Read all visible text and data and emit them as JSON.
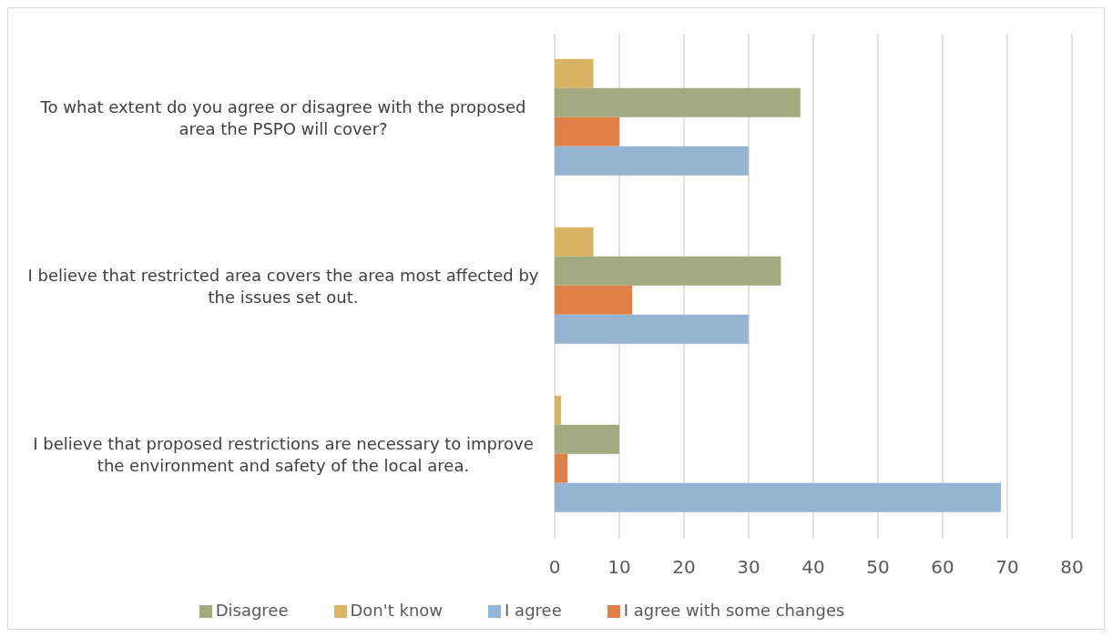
{
  "chart_data": {
    "type": "bar",
    "orientation": "horizontal",
    "categories": [
      "To what extent do you agree or disagree with the proposed area the PSPO will cover?",
      "I believe that restricted area covers the area most affected by the issues set out.",
      "I believe that proposed restrictions are necessary to improve the environment and safety of the local area."
    ],
    "series": [
      {
        "name": "Don't know",
        "color": "#d9b462",
        "values": [
          6,
          6,
          1
        ]
      },
      {
        "name": "Disagree",
        "color": "#a3aa7f",
        "values": [
          38,
          35,
          10
        ]
      },
      {
        "name": "I agree with some changes",
        "color": "#de8048",
        "values": [
          10,
          12,
          2
        ]
      },
      {
        "name": "I agree",
        "color": "#94b4d2",
        "values": [
          30,
          30,
          69
        ]
      }
    ],
    "xlim": [
      0,
      80
    ],
    "xticks": [
      0,
      10,
      20,
      30,
      40,
      50,
      60,
      70,
      80
    ],
    "grid": "x",
    "legend": "bottom"
  }
}
